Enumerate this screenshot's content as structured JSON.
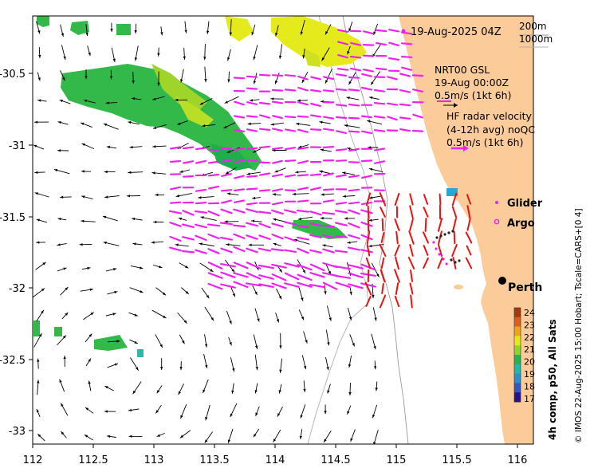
{
  "header": {
    "timestamp": "19-Aug-2025 04Z",
    "isobath_200": "200m",
    "isobath_1000": "1000m"
  },
  "legend": {
    "gsl_line1": "NRT00 GSL",
    "gsl_line2": "19-Aug 00:00Z",
    "gsl_scale": "0.5m/s (1kt 6h)",
    "hf_line1": "HF radar velocity",
    "hf_line2": "(4-12h avg) noQC",
    "hf_scale": "0.5m/s (1kt 6h)",
    "glider_label": "Glider",
    "argo_label": "Argo"
  },
  "place": {
    "perth_label": "Perth"
  },
  "x_axis": {
    "ticks": [
      "112",
      "112.5",
      "113",
      "113.5",
      "114",
      "114.5",
      "115",
      "115.5",
      "116"
    ]
  },
  "y_axis": {
    "ticks": [
      "-30.5",
      "-31",
      "-31.5",
      "-32",
      "-32.5",
      "-33"
    ]
  },
  "colorbar": {
    "label": "4h comp, p50, All Sats",
    "ticks": [
      "24",
      "23",
      "22",
      "21",
      "20",
      "19",
      "18",
      "17"
    ],
    "colors": [
      "#a23a0f",
      "#d9601c",
      "#e9a51c",
      "#e4e81a",
      "#8fd42a",
      "#26b356",
      "#22b7a8",
      "#2a8fcf",
      "#3657c2",
      "#23128a"
    ]
  },
  "credit": "© IMOS 22-Aug-2025 15:00 Hobart; Tscale=CARS+[0 4]",
  "colors": {
    "land": "#fbcb9a",
    "gsl_arrow": "#ee22ee",
    "model_arrow": "#000000",
    "hf_arrow": "#ee1111",
    "sst_green": "#33b94a",
    "sst_yellow": "#e5ea1c"
  }
}
